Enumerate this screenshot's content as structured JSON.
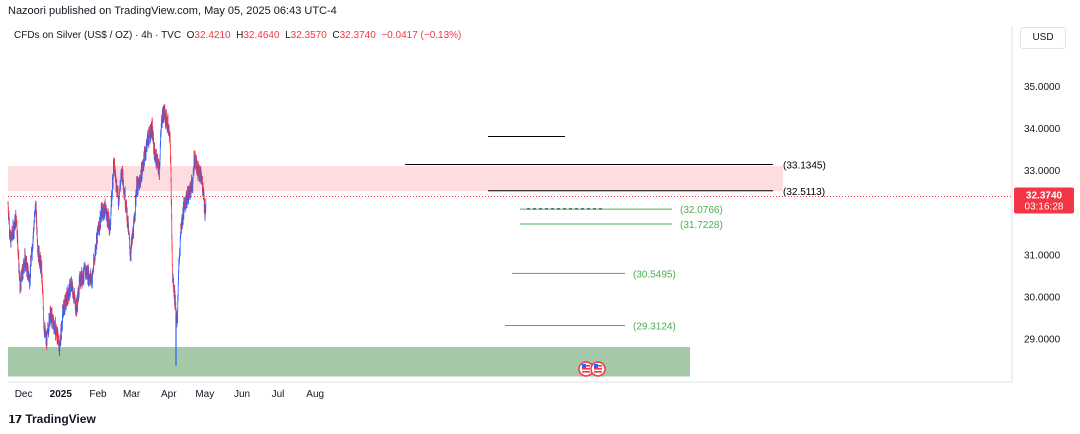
{
  "header": {
    "published": "Nazoori published on TradingView.com, May 05, 2025 06:43 UTC-4",
    "symbol": "CFDs on Silver (US$ / OZ) · 4h · TVC",
    "o_label": "O",
    "o": "32.4210",
    "h_label": "H",
    "h": "32.4640",
    "l_label": "L",
    "l": "32.3570",
    "c_label": "C",
    "c": "32.3740",
    "change": "−0.0417 (−0.13%)",
    "currency": "USD"
  },
  "footer": {
    "logo": "TradingView"
  },
  "colors": {
    "up": "#2962ff",
    "down": "#f23645",
    "resistance_zone": "#fddde0",
    "support_zone": "#a5c9a8",
    "level_green": "#4caf50",
    "price_tag": "#f23645"
  },
  "chart_data": {
    "type": "candlestick",
    "symbol": "Silver (XAG/USD) 4h",
    "y_ticks": [
      "35.0000",
      "34.0000",
      "33.0000",
      "31.0000",
      "30.0000",
      "29.0000"
    ],
    "ylim": [
      28.1,
      35.7
    ],
    "x_ticks": [
      "Dec",
      "2025",
      "Feb",
      "Mar",
      "Apr",
      "May",
      "Jun",
      "Jul",
      "Aug"
    ],
    "last_price": "32.3740",
    "countdown": "03:16:28",
    "resistance_zone": [
      32.5,
      33.1
    ],
    "support_zone": [
      28.1,
      28.8
    ],
    "price_path": [
      [
        "2024-11-18",
        32.2
      ],
      [
        "2024-11-20",
        31.3
      ],
      [
        "2024-11-25",
        31.9
      ],
      [
        "2024-11-28",
        30.2
      ],
      [
        "2024-12-02",
        30.9
      ],
      [
        "2024-12-06",
        30.4
      ],
      [
        "2024-12-11",
        32.2
      ],
      [
        "2024-12-13",
        31.1
      ],
      [
        "2024-12-16",
        30.6
      ],
      [
        "2024-12-18",
        29.3
      ],
      [
        "2024-12-20",
        28.9
      ],
      [
        "2024-12-23",
        29.6
      ],
      [
        "2024-12-27",
        29.3
      ],
      [
        "2024-12-31",
        28.8
      ],
      [
        "2025-01-03",
        29.7
      ],
      [
        "2025-01-10",
        30.3
      ],
      [
        "2025-01-14",
        29.7
      ],
      [
        "2025-01-17",
        30.4
      ],
      [
        "2025-01-22",
        30.6
      ],
      [
        "2025-01-27",
        30.4
      ],
      [
        "2025-01-31",
        31.4
      ],
      [
        "2025-02-04",
        32.0
      ],
      [
        "2025-02-07",
        32.1
      ],
      [
        "2025-02-11",
        31.6
      ],
      [
        "2025-02-14",
        33.2
      ],
      [
        "2025-02-18",
        32.3
      ],
      [
        "2025-02-21",
        33.0
      ],
      [
        "2025-02-25",
        32.0
      ],
      [
        "2025-02-28",
        31.0
      ],
      [
        "2025-03-03",
        31.7
      ],
      [
        "2025-03-05",
        32.6
      ],
      [
        "2025-03-07",
        32.6
      ],
      [
        "2025-03-11",
        33.2
      ],
      [
        "2025-03-14",
        33.7
      ],
      [
        "2025-03-18",
        34.0
      ],
      [
        "2025-03-20",
        33.4
      ],
      [
        "2025-03-24",
        33.0
      ],
      [
        "2025-03-26",
        34.2
      ],
      [
        "2025-03-28",
        34.4
      ],
      [
        "2025-03-31",
        34.1
      ],
      [
        "2025-04-02",
        33.9
      ],
      [
        "2025-04-03",
        32.4
      ],
      [
        "2025-04-04",
        30.5
      ],
      [
        "2025-04-07",
        29.7
      ],
      [
        "2025-04-08",
        29.3
      ],
      [
        "2025-04-09",
        30.5
      ],
      [
        "2025-04-11",
        31.6
      ],
      [
        "2025-04-14",
        32.2
      ],
      [
        "2025-04-17",
        32.4
      ],
      [
        "2025-04-21",
        32.7
      ],
      [
        "2025-04-22",
        33.3
      ],
      [
        "2025-04-24",
        33.1
      ],
      [
        "2025-04-28",
        32.8
      ],
      [
        "2025-04-30",
        32.5
      ],
      [
        "2025-05-01",
        32.0
      ],
      [
        "2025-05-02",
        32.3
      ],
      [
        "2025-05-02",
        32.4
      ]
    ],
    "levels": [
      {
        "value": 33.8,
        "label": "",
        "color": "#000000"
      },
      {
        "value": 33.1345,
        "label": "(33.1345)",
        "color": "#000000"
      },
      {
        "value": 32.5113,
        "label": "(32.5113)",
        "color": "#000000"
      },
      {
        "value": 32.0766,
        "label": "(32.0766)",
        "color": "#4caf50"
      },
      {
        "value": 31.7228,
        "label": "(31.7228)",
        "color": "#4caf50"
      },
      {
        "value": 30.5495,
        "label": "(30.5495)",
        "color": "#4caf50"
      },
      {
        "value": 29.3124,
        "label": "(29.3124)",
        "color": "#4caf50"
      }
    ]
  }
}
